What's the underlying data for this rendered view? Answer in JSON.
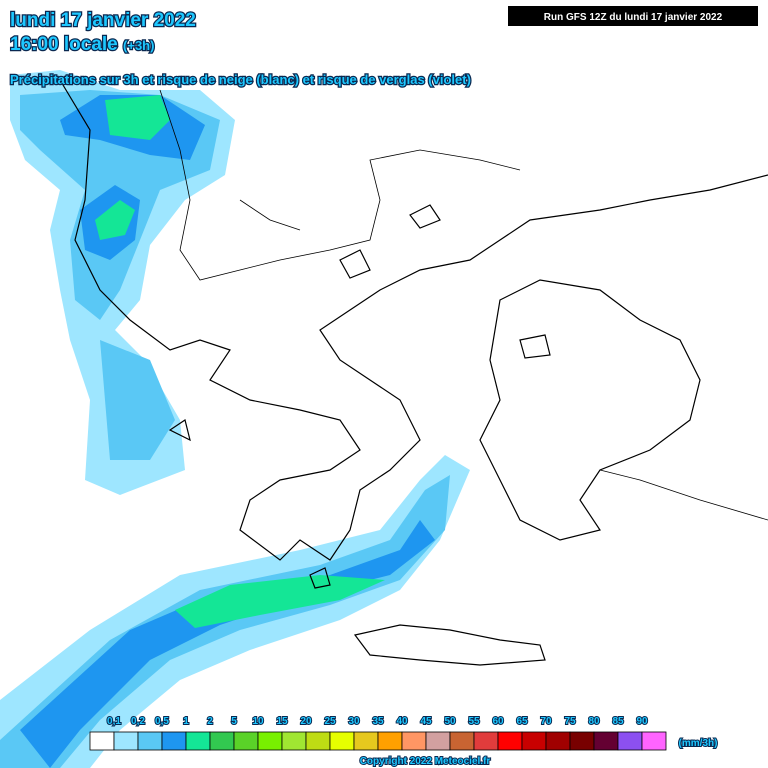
{
  "header": {
    "date": "lundi 17 janvier 2022",
    "time": "16:00 locale",
    "offset": "(+3h)",
    "subtitle": "Précipitations sur 3h et risque de neige (blanc) et risque de verglas (violet)",
    "run": "Run GFS 12Z du lundi 17 janvier 2022"
  },
  "legend": {
    "labels": [
      "0,1",
      "0,2",
      "0,5",
      "1",
      "2",
      "5",
      "10",
      "15",
      "20",
      "25",
      "30",
      "35",
      "40",
      "45",
      "50",
      "55",
      "60",
      "65",
      "70",
      "75",
      "80",
      "85",
      "90"
    ],
    "colors": [
      "#ffffff",
      "#9ee6ff",
      "#5ac8f5",
      "#1e96f0",
      "#14e696",
      "#32c850",
      "#5ad228",
      "#78f000",
      "#a0e632",
      "#bedc14",
      "#e6ff00",
      "#e6c81e",
      "#ffa000",
      "#ff9664",
      "#d2a0a0",
      "#c86432",
      "#e13c3c",
      "#ff0000",
      "#c80000",
      "#a00000",
      "#780000",
      "#640032",
      "#8c50f0",
      "#ff64ff"
    ],
    "unit": "(mm/3h)"
  },
  "footer": {
    "copyright": "Copyright 2022 Meteociel.fr"
  }
}
